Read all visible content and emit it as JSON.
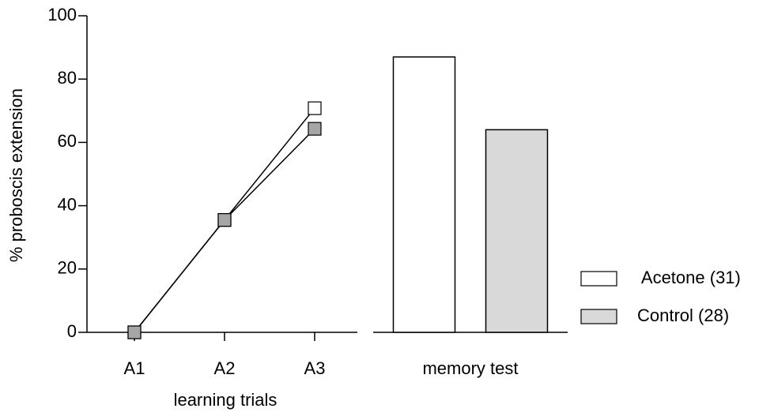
{
  "chart_data": [
    {
      "type": "line",
      "ylabel": "% proboscis extension",
      "xlabel": "learning trials",
      "categories": [
        "A1",
        "A2",
        "A3"
      ],
      "series": [
        {
          "color": "#ffffff",
          "values": [
            0,
            35.5,
            70.8
          ]
        },
        {
          "color": "#a6a6a6",
          "values": [
            0,
            35.5,
            64.3
          ]
        }
      ],
      "ylim": [
        0,
        100
      ],
      "yticks": [
        0,
        20,
        40,
        60,
        80,
        100
      ]
    },
    {
      "type": "bar",
      "categories": [
        "memory test"
      ],
      "series": [
        {
          "name": " Acetone (31)",
          "color": "#ffffff",
          "values": [
            87
          ]
        },
        {
          "name": "Control (28)",
          "color": "#d9d9d9",
          "values": [
            64
          ]
        }
      ],
      "ylim": [
        0,
        100
      ],
      "legend": "right"
    }
  ]
}
